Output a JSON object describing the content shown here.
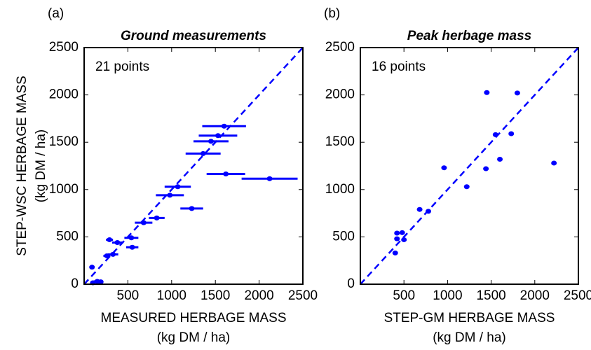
{
  "chart_data": [
    {
      "type": "scatter",
      "panel": "(a)",
      "title": "Ground measurements",
      "annotation": "21 points",
      "xlabel": [
        "MEASURED HERBAGE MASS",
        "(kg DM / ha)"
      ],
      "ylabel": [
        "STEP-WSC HERBAGE MASS",
        "(kg DM / ha)"
      ],
      "xlim": [
        0,
        2500
      ],
      "ylim": [
        0,
        2500
      ],
      "xticks": [
        500,
        1000,
        1500,
        2000,
        2500
      ],
      "yticks": [
        0,
        500,
        1000,
        1500,
        2000,
        2500
      ],
      "series": [
        {
          "color": "#0000ff",
          "x": [
            1600,
            1530,
            1450,
            1360,
            1620,
            2120,
            1070,
            980,
            1230,
            830,
            680,
            540,
            550,
            290,
            380,
            330,
            260,
            90,
            150,
            100,
            190
          ],
          "values": [
            1670,
            1570,
            1510,
            1380,
            1165,
            1115,
            1030,
            940,
            800,
            700,
            650,
            490,
            390,
            470,
            440,
            315,
            300,
            180,
            30,
            15,
            25
          ],
          "xerr": [
            250,
            220,
            200,
            200,
            220,
            320,
            150,
            160,
            130,
            90,
            100,
            80,
            70,
            40,
            60,
            60,
            40,
            30,
            40,
            30,
            30
          ]
        }
      ]
    },
    {
      "type": "scatter",
      "panel": "(b)",
      "title": "Peak herbage mass",
      "annotation": "16 points",
      "xlabel": [
        "STEP-GM HERBAGE MASS",
        "(kg DM / ha)"
      ],
      "xlim": [
        0,
        2500
      ],
      "ylim": [
        0,
        2500
      ],
      "xticks": [
        500,
        1000,
        1500,
        2000,
        2500
      ],
      "yticks": [
        0,
        500,
        1000,
        1500,
        2000,
        2500
      ],
      "series": [
        {
          "color": "#0000ff",
          "x": [
            1450,
            1800,
            1550,
            1730,
            1600,
            2220,
            960,
            1440,
            1220,
            680,
            780,
            420,
            480,
            420,
            500,
            400
          ],
          "values": [
            2025,
            2020,
            1580,
            1590,
            1320,
            1280,
            1230,
            1220,
            1030,
            790,
            770,
            540,
            545,
            480,
            470,
            330
          ]
        }
      ]
    }
  ]
}
